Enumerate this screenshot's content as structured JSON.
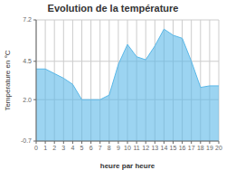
{
  "chart_data": {
    "type": "area",
    "title": "Evolution de la température",
    "xlabel": "heure par heure",
    "ylabel": "Température en °C",
    "color": "#5ab8e8",
    "x": [
      0,
      1,
      2,
      3,
      4,
      5,
      6,
      7,
      8,
      9,
      10,
      11,
      12,
      13,
      14,
      15,
      16,
      17,
      18,
      19,
      20
    ],
    "values": [
      4.0,
      4.0,
      3.7,
      3.4,
      3.0,
      2.0,
      2.0,
      2.0,
      2.3,
      4.3,
      5.6,
      4.8,
      4.6,
      5.5,
      6.6,
      6.2,
      6.0,
      4.5,
      2.8,
      2.9,
      2.9
    ],
    "xlim": [
      0,
      20
    ],
    "xticks": [
      0,
      1,
      2,
      3,
      4,
      5,
      6,
      7,
      8,
      9,
      10,
      11,
      12,
      13,
      14,
      15,
      16,
      17,
      18,
      19,
      20
    ],
    "ylim": [
      -0.7,
      7.2
    ],
    "yticks": [
      -0.7,
      {
        "value": 2.0,
        "label": "2.0"
      },
      4.5,
      7.2
    ],
    "grid": true
  }
}
